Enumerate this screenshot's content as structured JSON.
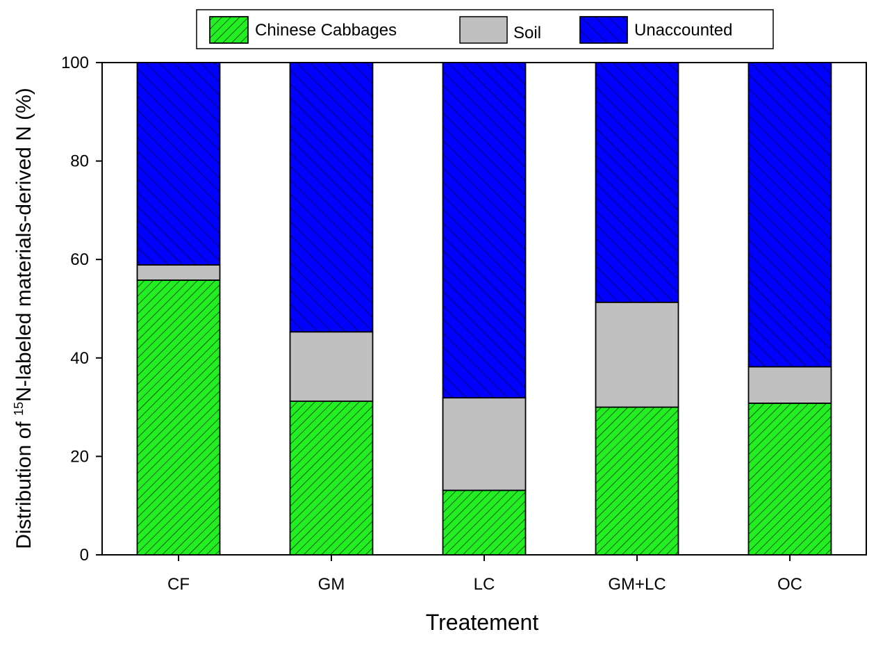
{
  "chart_data": {
    "type": "bar",
    "stacked": true,
    "categories": [
      "CF",
      "GM",
      "LC",
      "GM+LC",
      "OC"
    ],
    "series": [
      {
        "name": "Chinese Cabbages",
        "values": [
          55.8,
          31.2,
          13.1,
          30.0,
          30.8
        ],
        "color": "#22ee22",
        "hatch": "forward-diagonal"
      },
      {
        "name": "Soil",
        "values": [
          3.1,
          14.1,
          18.8,
          21.3,
          7.4
        ],
        "color": "#c0c0c0",
        "hatch": "none"
      },
      {
        "name": "Unaccounted",
        "values": [
          41.1,
          54.7,
          68.1,
          48.7,
          61.8
        ],
        "color": "#0000ff",
        "hatch": "back-diagonal"
      }
    ],
    "xlabel": "Treatement",
    "ylabel": {
      "prefix": "Distribution of ",
      "superscript": "15",
      "suffix": "N-labeled materials-derived N (%)"
    },
    "ylim": [
      0,
      100
    ],
    "yticks": [
      0,
      20,
      40,
      60,
      80,
      100
    ],
    "legend_position": "top-center",
    "grid": false
  }
}
